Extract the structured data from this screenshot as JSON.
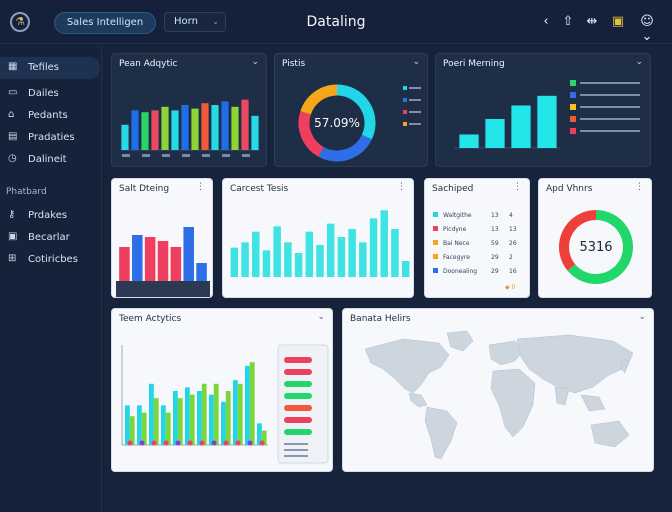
{
  "header": {
    "search_pill": "Sales Intelligen",
    "home_select": "Horn",
    "app_title": "Dataling",
    "icons": [
      "chevron-left-icon",
      "upload-icon",
      "split-icon",
      "note-icon",
      "user-icon"
    ]
  },
  "sidebar": {
    "items_top": [
      {
        "icon": "table-icon",
        "label": "Tefiles"
      },
      {
        "icon": "file-icon",
        "label": "Dailes"
      },
      {
        "icon": "lock-icon",
        "label": "Pedants"
      },
      {
        "icon": "briefcase-icon",
        "label": "Pradaties"
      },
      {
        "icon": "clock-icon",
        "label": "Dalineit"
      }
    ],
    "section_label": "Phatbard",
    "items_bottom": [
      {
        "icon": "key-icon",
        "label": "Prdakes"
      },
      {
        "icon": "calendar-icon",
        "label": "Becarlar"
      },
      {
        "icon": "grid-icon",
        "label": "Cotiricbes"
      }
    ]
  },
  "cards": {
    "card1": {
      "title": "Pean Adqytic"
    },
    "card2": {
      "title": "Pistis"
    },
    "card3": {
      "title": "Poeri Merning"
    },
    "card4": {
      "title": "Salt Dteing"
    },
    "card5": {
      "title": "Carcest Tesis"
    },
    "card6": {
      "title": "Sachiped",
      "footer": "◆ 0"
    },
    "card7": {
      "title": "Apd Vhnrs"
    },
    "card8": {
      "title": "Teem Actytics"
    },
    "card9": {
      "title": "Banata Helirs"
    }
  },
  "chart_data": [
    {
      "type": "bar",
      "title": "Pean Adqytic",
      "values": [
        28,
        44,
        42,
        44,
        48,
        44,
        50,
        46,
        52,
        50,
        54,
        48,
        56,
        38
      ],
      "colors": [
        "#25d9e6",
        "#1e6fe6",
        "#2ad46a",
        "#e84a5f",
        "#8bd636",
        "#25d9e6",
        "#1e6fe6",
        "#8bd636",
        "#f05a3a",
        "#25d9e6",
        "#1e6fe6",
        "#8bd636",
        "#e84a5f",
        "#25d9e6"
      ],
      "ylim": [
        0,
        60
      ]
    },
    {
      "type": "pie",
      "title": "Pistis",
      "center_label": "57.09%",
      "values": [
        32,
        26,
        22,
        20
      ],
      "colors": [
        "#22d6e6",
        "#2e6ee6",
        "#ee3f5e",
        "#f6a61b"
      ]
    },
    {
      "type": "bar",
      "title": "Poeri Merning",
      "values": [
        14,
        30,
        44,
        54
      ],
      "colors": [
        "#22e6ea"
      ],
      "ylim": [
        0,
        60
      ],
      "legend_colors": [
        "#2ad46a",
        "#2e6ee6",
        "#f6c21b",
        "#f05a3a",
        "#ee3f5e"
      ]
    },
    {
      "type": "bar",
      "title": "Salt Dteing",
      "values": [
        34,
        46,
        44,
        40,
        34,
        54,
        18
      ],
      "colors": [
        "#ee3f5e",
        "#2e6ee6",
        "#ee3f5e",
        "#ee3f5e",
        "#ee3f5e",
        "#2e6ee6",
        "#2e6ee6"
      ],
      "ylim": [
        0,
        60
      ]
    },
    {
      "type": "bar",
      "title": "Carcest Tesis",
      "values": [
        22,
        26,
        34,
        20,
        38,
        26,
        18,
        34,
        24,
        40,
        30,
        36,
        26,
        44,
        50,
        36,
        12
      ],
      "colors": [
        "#3fe3e3"
      ],
      "ylim": [
        0,
        60
      ]
    },
    {
      "type": "table",
      "title": "Sachiped",
      "columns": [
        "name",
        "a",
        "b"
      ],
      "rows": [
        {
          "color": "#22d6e6",
          "name": "Waltgithe",
          "a": "13",
          "b": "4"
        },
        {
          "color": "#ee3f5e",
          "name": "Picdyne",
          "a": "13",
          "b": "13"
        },
        {
          "color": "#f6a61b",
          "name": "Bai Nece",
          "a": "59",
          "b": "26"
        },
        {
          "color": "#f6a61b",
          "name": "Facegyre",
          "a": "29",
          "b": "2"
        },
        {
          "color": "#2e6ee6",
          "name": "Doonealing",
          "a": "29",
          "b": "16"
        }
      ]
    },
    {
      "type": "pie",
      "title": "Apd Vhnrs",
      "center_label": "5316",
      "values": [
        64,
        36
      ],
      "colors": [
        "#21d76a",
        "#ee3f3a"
      ]
    },
    {
      "type": "bar",
      "title": "Teem Actytics",
      "series": [
        {
          "name": "",
          "values": [
            22,
            22,
            34,
            22,
            30,
            32,
            30,
            28,
            24,
            36,
            44,
            12
          ],
          "color": "#22d6e6"
        },
        {
          "name": "",
          "values": [
            16,
            18,
            26,
            18,
            26,
            28,
            34,
            34,
            30,
            34,
            46,
            8
          ],
          "color": "#7bd63a"
        }
      ],
      "ylim": [
        0,
        50
      ],
      "legend_colors": [
        "#ee3f5e",
        "#ee3f5e",
        "#21d76a",
        "#21d76a",
        "#f05a3a",
        "#ee3f5e",
        "#21d76a"
      ]
    }
  ]
}
